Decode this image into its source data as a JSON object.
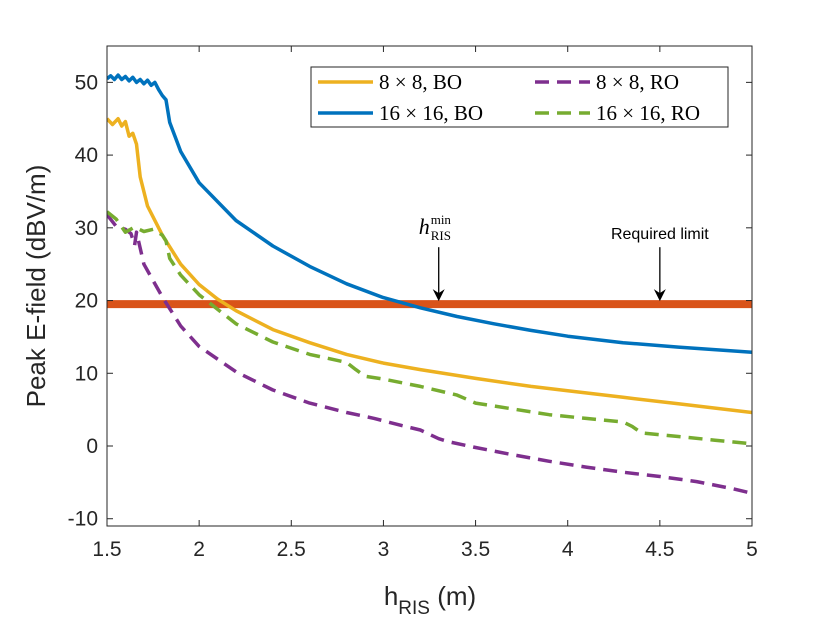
{
  "chart_data": {
    "type": "line",
    "title": "",
    "xlabel_main": "h",
    "xlabel_sub": "RIS",
    "xlabel_unit": " (m)",
    "ylabel": "Peak E-field (dBV/m)",
    "xlim": [
      1.5,
      5
    ],
    "ylim": [
      -11,
      55
    ],
    "xticks": [
      1.5,
      2,
      2.5,
      3,
      3.5,
      4,
      4.5,
      5
    ],
    "xtick_labels": [
      "1.5",
      "2",
      "2.5",
      "3",
      "3.5",
      "4",
      "4.5",
      "5"
    ],
    "yticks": [
      -10,
      0,
      10,
      20,
      30,
      40,
      50
    ],
    "ytick_labels": [
      "-10",
      "0",
      "10",
      "20",
      "30",
      "40",
      "50"
    ],
    "grid": false,
    "legend_position": "top-right",
    "series": [
      {
        "name": "8 × 8, BO",
        "color": "#EDB120",
        "dash": "solid",
        "x": [
          1.5,
          1.53,
          1.56,
          1.58,
          1.6,
          1.62,
          1.64,
          1.66,
          1.68,
          1.72,
          1.8,
          1.9,
          2.0,
          2.1,
          2.2,
          2.4,
          2.6,
          2.8,
          3.0,
          3.2,
          3.5,
          3.8,
          4.0,
          4.3,
          4.6,
          5.0
        ],
        "values": [
          45,
          44.2,
          45,
          44,
          44.6,
          42.6,
          43,
          41.5,
          37,
          33,
          29,
          25,
          22.2,
          20.2,
          18.6,
          16,
          14.2,
          12.6,
          11.4,
          10.5,
          9.3,
          8.2,
          7.6,
          6.7,
          5.8,
          4.6
        ]
      },
      {
        "name": "16 × 16, BO",
        "color": "#0072BD",
        "dash": "solid",
        "x": [
          1.5,
          1.52,
          1.54,
          1.56,
          1.58,
          1.6,
          1.62,
          1.64,
          1.66,
          1.68,
          1.7,
          1.72,
          1.74,
          1.76,
          1.78,
          1.8,
          1.82,
          1.84,
          1.87,
          1.9,
          2.0,
          2.2,
          2.4,
          2.6,
          2.8,
          3.0,
          3.2,
          3.4,
          3.6,
          3.8,
          4.0,
          4.3,
          4.6,
          5.0
        ],
        "values": [
          50.5,
          50.9,
          50.4,
          51,
          50.4,
          50.8,
          50.2,
          50.7,
          50,
          50.4,
          49.8,
          50.3,
          49.6,
          50,
          49,
          48.2,
          47.6,
          44.5,
          42.5,
          40.5,
          36.2,
          31,
          27.5,
          24.7,
          22.3,
          20.4,
          19,
          17.8,
          16.8,
          15.9,
          15.1,
          14.2,
          13.6,
          12.9
        ]
      },
      {
        "name": "8 × 8, RO",
        "color": "#7E2F8E",
        "dash": "dashed",
        "x": [
          1.5,
          1.55,
          1.6,
          1.63,
          1.65,
          1.66,
          1.7,
          1.8,
          1.9,
          2.0,
          2.2,
          2.4,
          2.6,
          2.8,
          2.95,
          3.1,
          3.2,
          3.3,
          3.35,
          3.5,
          3.7,
          3.9,
          4.1,
          4.3,
          4.5,
          4.7,
          4.9,
          5.0
        ],
        "values": [
          31.8,
          30.2,
          29.8,
          29.2,
          27.6,
          29.4,
          25,
          20.5,
          16.5,
          13.7,
          10.2,
          7.7,
          5.9,
          4.6,
          3.8,
          2.8,
          2.2,
          1.0,
          0.6,
          -0.2,
          -1.2,
          -2.1,
          -2.9,
          -3.6,
          -4.2,
          -4.9,
          -5.9,
          -6.5
        ]
      },
      {
        "name": "16 × 16, RO",
        "color": "#77AC30",
        "dash": "dashed",
        "x": [
          1.5,
          1.55,
          1.6,
          1.65,
          1.7,
          1.75,
          1.8,
          1.82,
          1.84,
          1.9,
          2.0,
          2.2,
          2.4,
          2.6,
          2.8,
          2.85,
          2.9,
          3.0,
          3.2,
          3.4,
          3.5,
          3.7,
          3.9,
          4.1,
          4.3,
          4.35,
          4.4,
          4.6,
          4.8,
          5.0
        ],
        "values": [
          32.2,
          31.2,
          29.4,
          30.1,
          29.5,
          29.8,
          29,
          28.2,
          25.8,
          23.5,
          20.8,
          16.8,
          14.3,
          12.6,
          11.5,
          10.5,
          9.6,
          9.2,
          8.2,
          7.0,
          5.9,
          5.1,
          4.3,
          3.8,
          3.3,
          2.7,
          1.8,
          1.3,
          0.8,
          0.3
        ]
      }
    ],
    "reference_line": {
      "name": "Required limit",
      "value": 19.5,
      "color": "#D95319"
    },
    "annotations": [
      {
        "kind": "math",
        "base": "h",
        "sub": "RIS",
        "sup": "min",
        "x_data": 3.3,
        "y_data": 19.5
      },
      {
        "kind": "text",
        "text": "Required limit",
        "x_data": 4.5,
        "y_data": 19.5
      }
    ]
  }
}
